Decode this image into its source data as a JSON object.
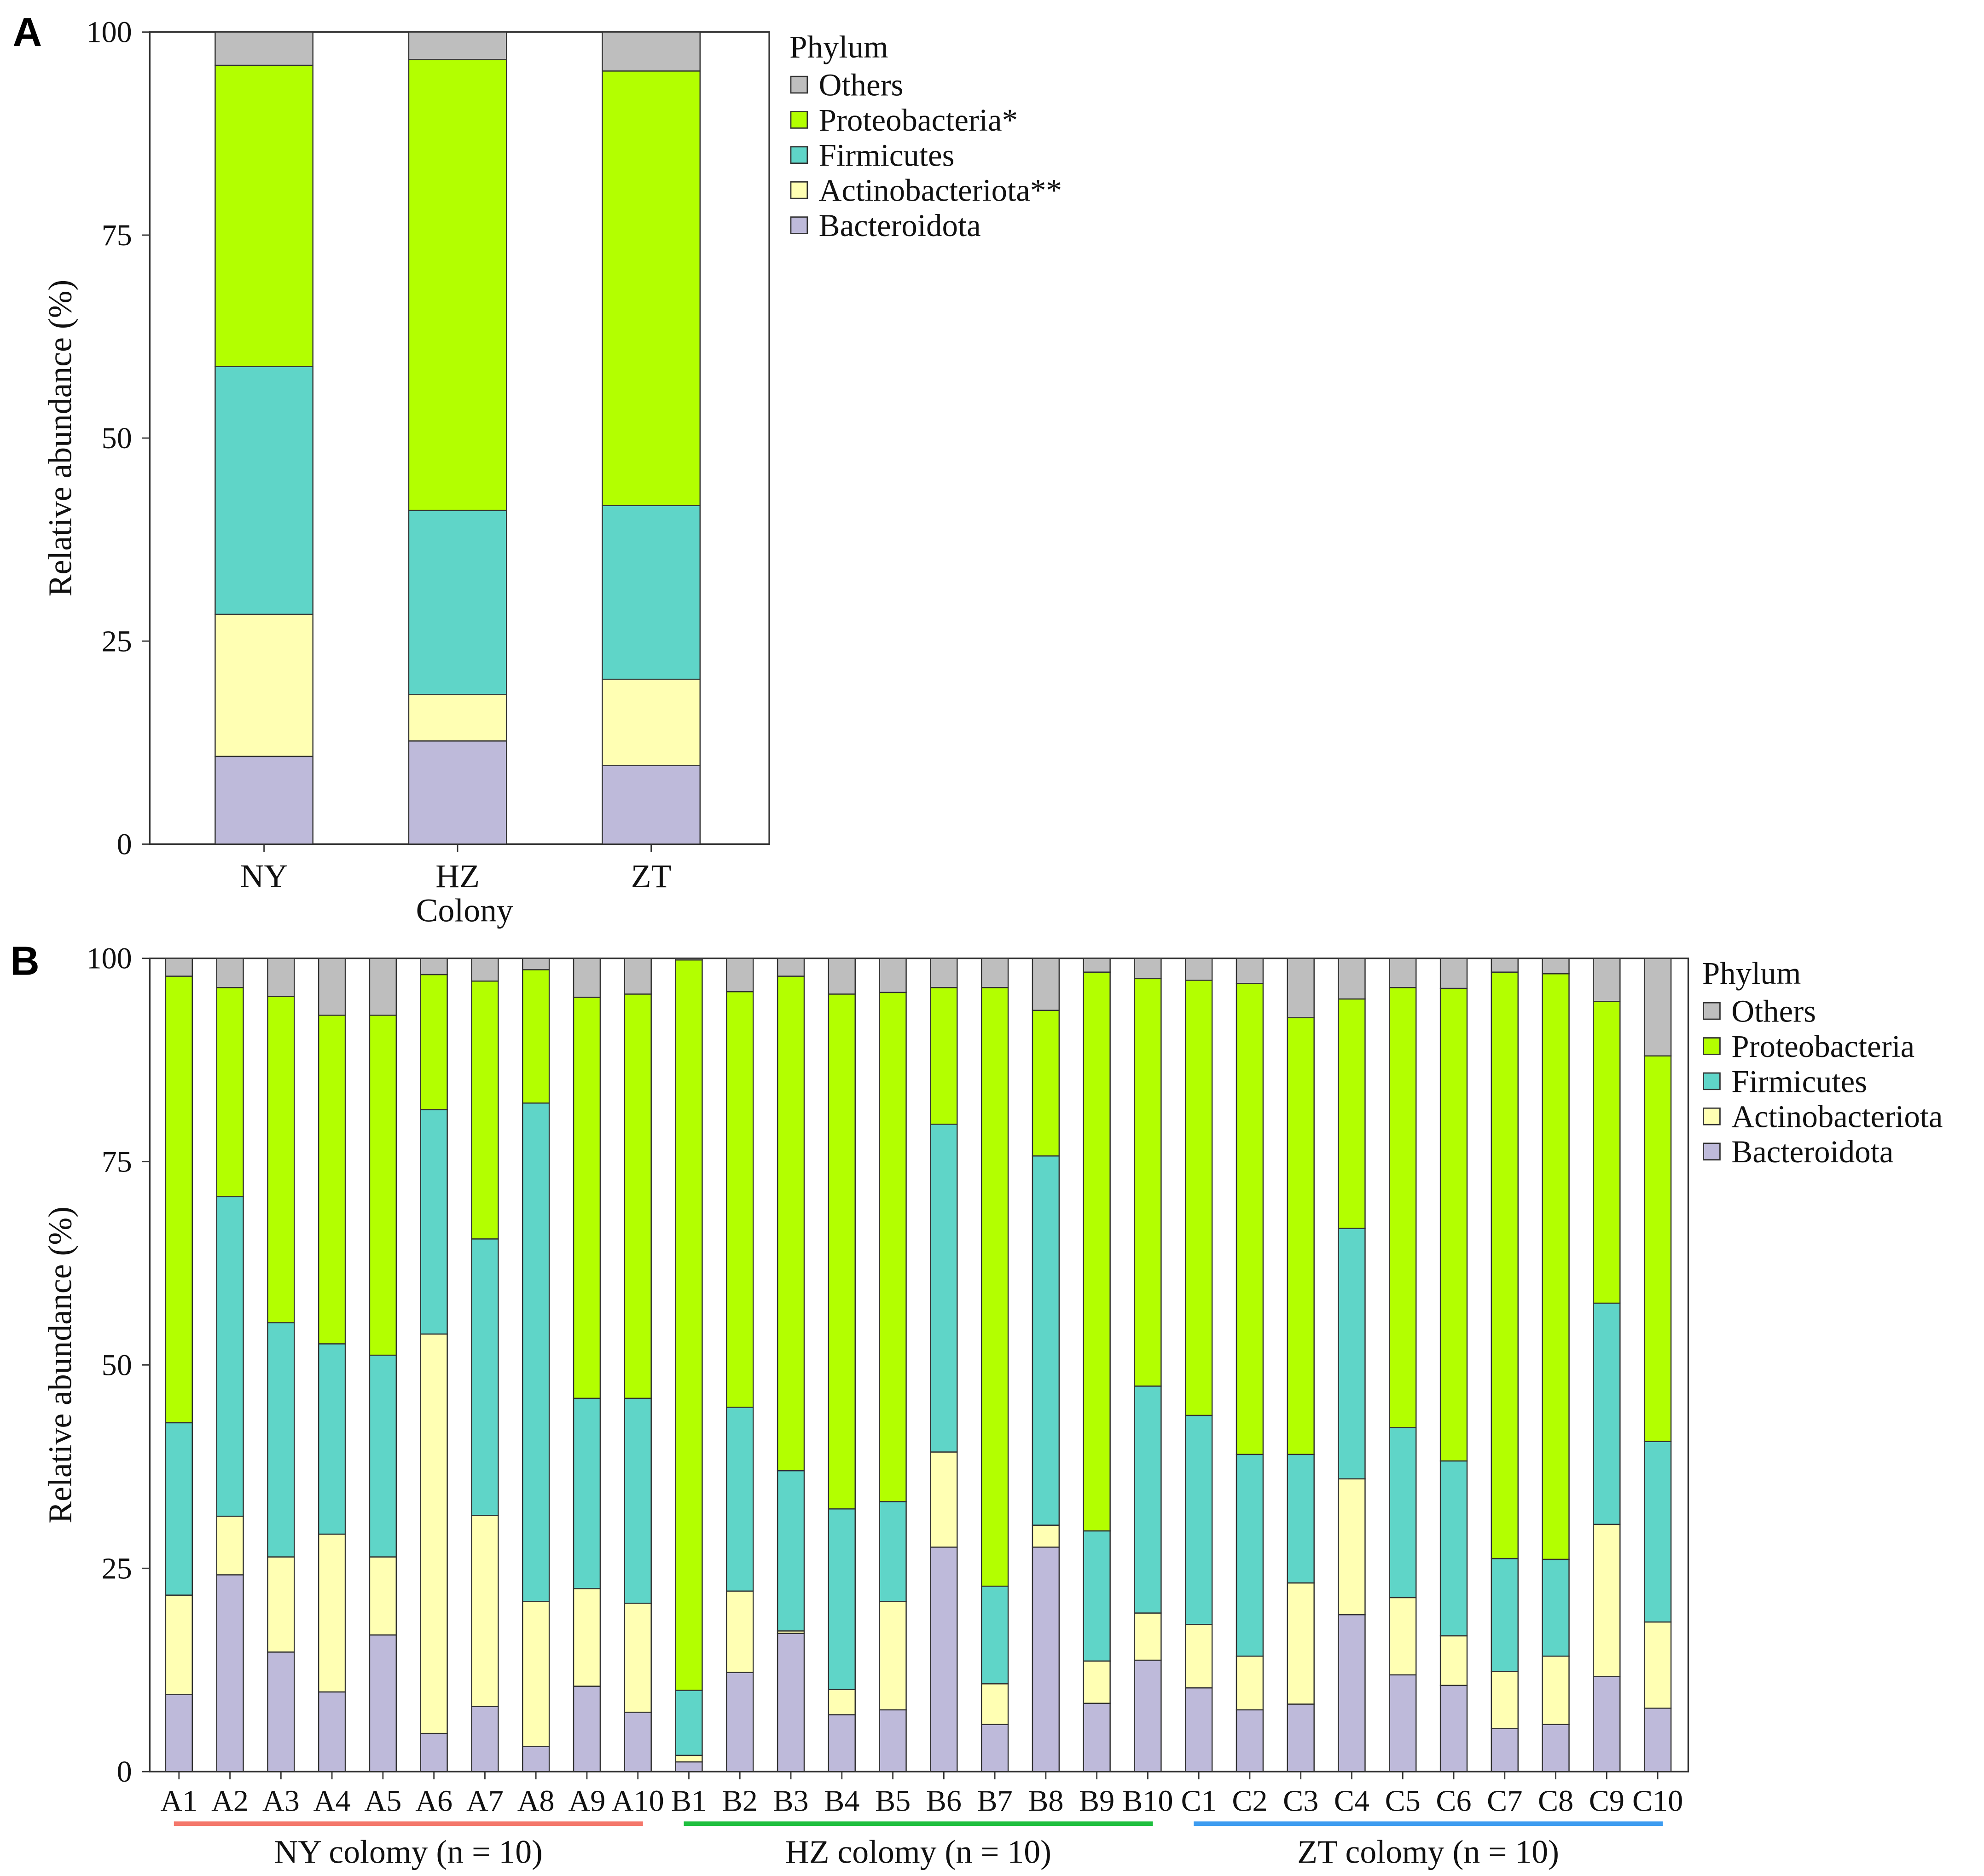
{
  "colors": {
    "Others": "#bebebe",
    "Proteobacteria": "#b3ff00",
    "Firmicutes": "#5fd5c8",
    "Actinobacteriota": "#ffffb3",
    "Bacteroidota": "#bebada"
  },
  "group_colors": [
    "#f4776b",
    "#1fbf3f",
    "#3d9cf0"
  ],
  "chart_data": [
    {
      "panel": "A",
      "type": "bar",
      "stacked": true,
      "ylabel": "Relative abundance (%)",
      "xlabel": "Colony",
      "ylim": [
        0,
        100
      ],
      "yticks": [
        "0",
        "25",
        "50",
        "75",
        "100"
      ],
      "legend_title": "Phylum",
      "legend_position": "right",
      "legend": [
        "Others",
        "Proteobacteria*",
        "Firmicutes",
        "Actinobacteriota**",
        "Bacteroidota"
      ],
      "categories": [
        "NY",
        "HZ",
        "ZT"
      ],
      "series": [
        {
          "name": "Bacteroidota",
          "values": [
            10.8,
            12.7,
            9.7
          ]
        },
        {
          "name": "Actinobacteriota",
          "values": [
            17.5,
            5.7,
            10.6
          ]
        },
        {
          "name": "Firmicutes",
          "values": [
            30.5,
            22.7,
            21.4
          ]
        },
        {
          "name": "Proteobacteria",
          "values": [
            37.1,
            55.5,
            53.5
          ]
        },
        {
          "name": "Others",
          "values": [
            4.1,
            3.4,
            4.8
          ]
        }
      ]
    },
    {
      "panel": "B",
      "type": "bar",
      "stacked": true,
      "ylabel": "Relative abundance (%)",
      "ylim": [
        0,
        100
      ],
      "yticks": [
        "0",
        "25",
        "50",
        "75",
        "100"
      ],
      "legend_title": "Phylum",
      "legend_position": "right",
      "legend": [
        "Others",
        "Proteobacteria",
        "Firmicutes",
        "Actinobacteriota",
        "Bacteroidota"
      ],
      "categories": [
        "A1",
        "A2",
        "A3",
        "A4",
        "A5",
        "A6",
        "A7",
        "A8",
        "A9",
        "A10",
        "B1",
        "B2",
        "B3",
        "B4",
        "B5",
        "B6",
        "B7",
        "B8",
        "B9",
        "B10",
        "C1",
        "C2",
        "C3",
        "C4",
        "C5",
        "C6",
        "C7",
        "C8",
        "C9",
        "C10"
      ],
      "groups": [
        {
          "label": "NY colomy",
          "n": "(n = 10)"
        },
        {
          "label": "HZ colomy",
          "n": "(n = 10)"
        },
        {
          "label": "ZT colomy",
          "n": "(n = 10)"
        }
      ],
      "series": [
        {
          "name": "Bacteroidota",
          "values": [
            9.5,
            24.2,
            14.7,
            9.8,
            16.8,
            4.7,
            8.0,
            3.1,
            10.5,
            7.3,
            1.2,
            12.2,
            17.0,
            7.0,
            7.6,
            27.6,
            5.8,
            27.6,
            8.4,
            13.7,
            10.3,
            7.6,
            8.3,
            19.3,
            11.9,
            10.6,
            5.3,
            5.8,
            11.7,
            7.8
          ]
        },
        {
          "name": "Actinobacteriota",
          "values": [
            12.2,
            7.2,
            11.7,
            19.4,
            9.6,
            49.1,
            23.5,
            17.8,
            12.0,
            13.4,
            0.8,
            10.0,
            0.3,
            3.1,
            13.3,
            11.7,
            5.0,
            2.7,
            5.2,
            5.8,
            7.8,
            6.6,
            14.9,
            16.7,
            9.5,
            6.1,
            7.0,
            8.4,
            18.7,
            10.6
          ]
        },
        {
          "name": "Firmicutes",
          "values": [
            21.2,
            39.3,
            28.8,
            23.4,
            24.8,
            27.6,
            34.0,
            61.3,
            23.4,
            25.2,
            8.0,
            22.6,
            19.7,
            22.2,
            12.3,
            40.3,
            12.0,
            45.4,
            16.0,
            27.9,
            25.7,
            24.8,
            15.8,
            30.8,
            20.9,
            21.5,
            13.9,
            11.9,
            27.2,
            22.2
          ]
        },
        {
          "name": "Proteobacteria",
          "values": [
            54.9,
            25.7,
            40.1,
            40.4,
            41.8,
            16.6,
            31.7,
            16.4,
            49.3,
            49.7,
            89.8,
            51.1,
            60.8,
            63.3,
            62.6,
            16.8,
            73.6,
            17.9,
            68.7,
            50.1,
            53.5,
            57.9,
            53.7,
            28.2,
            54.1,
            58.1,
            72.1,
            72.0,
            37.1,
            47.4
          ]
        },
        {
          "name": "Others",
          "values": [
            2.2,
            3.6,
            4.7,
            7.0,
            7.0,
            2.0,
            2.8,
            1.4,
            4.8,
            4.4,
            0.2,
            4.1,
            2.2,
            4.4,
            4.2,
            3.6,
            3.6,
            6.4,
            1.7,
            2.5,
            2.7,
            3.1,
            7.3,
            5.0,
            3.6,
            3.7,
            1.7,
            1.9,
            5.3,
            12.0
          ]
        }
      ]
    }
  ]
}
